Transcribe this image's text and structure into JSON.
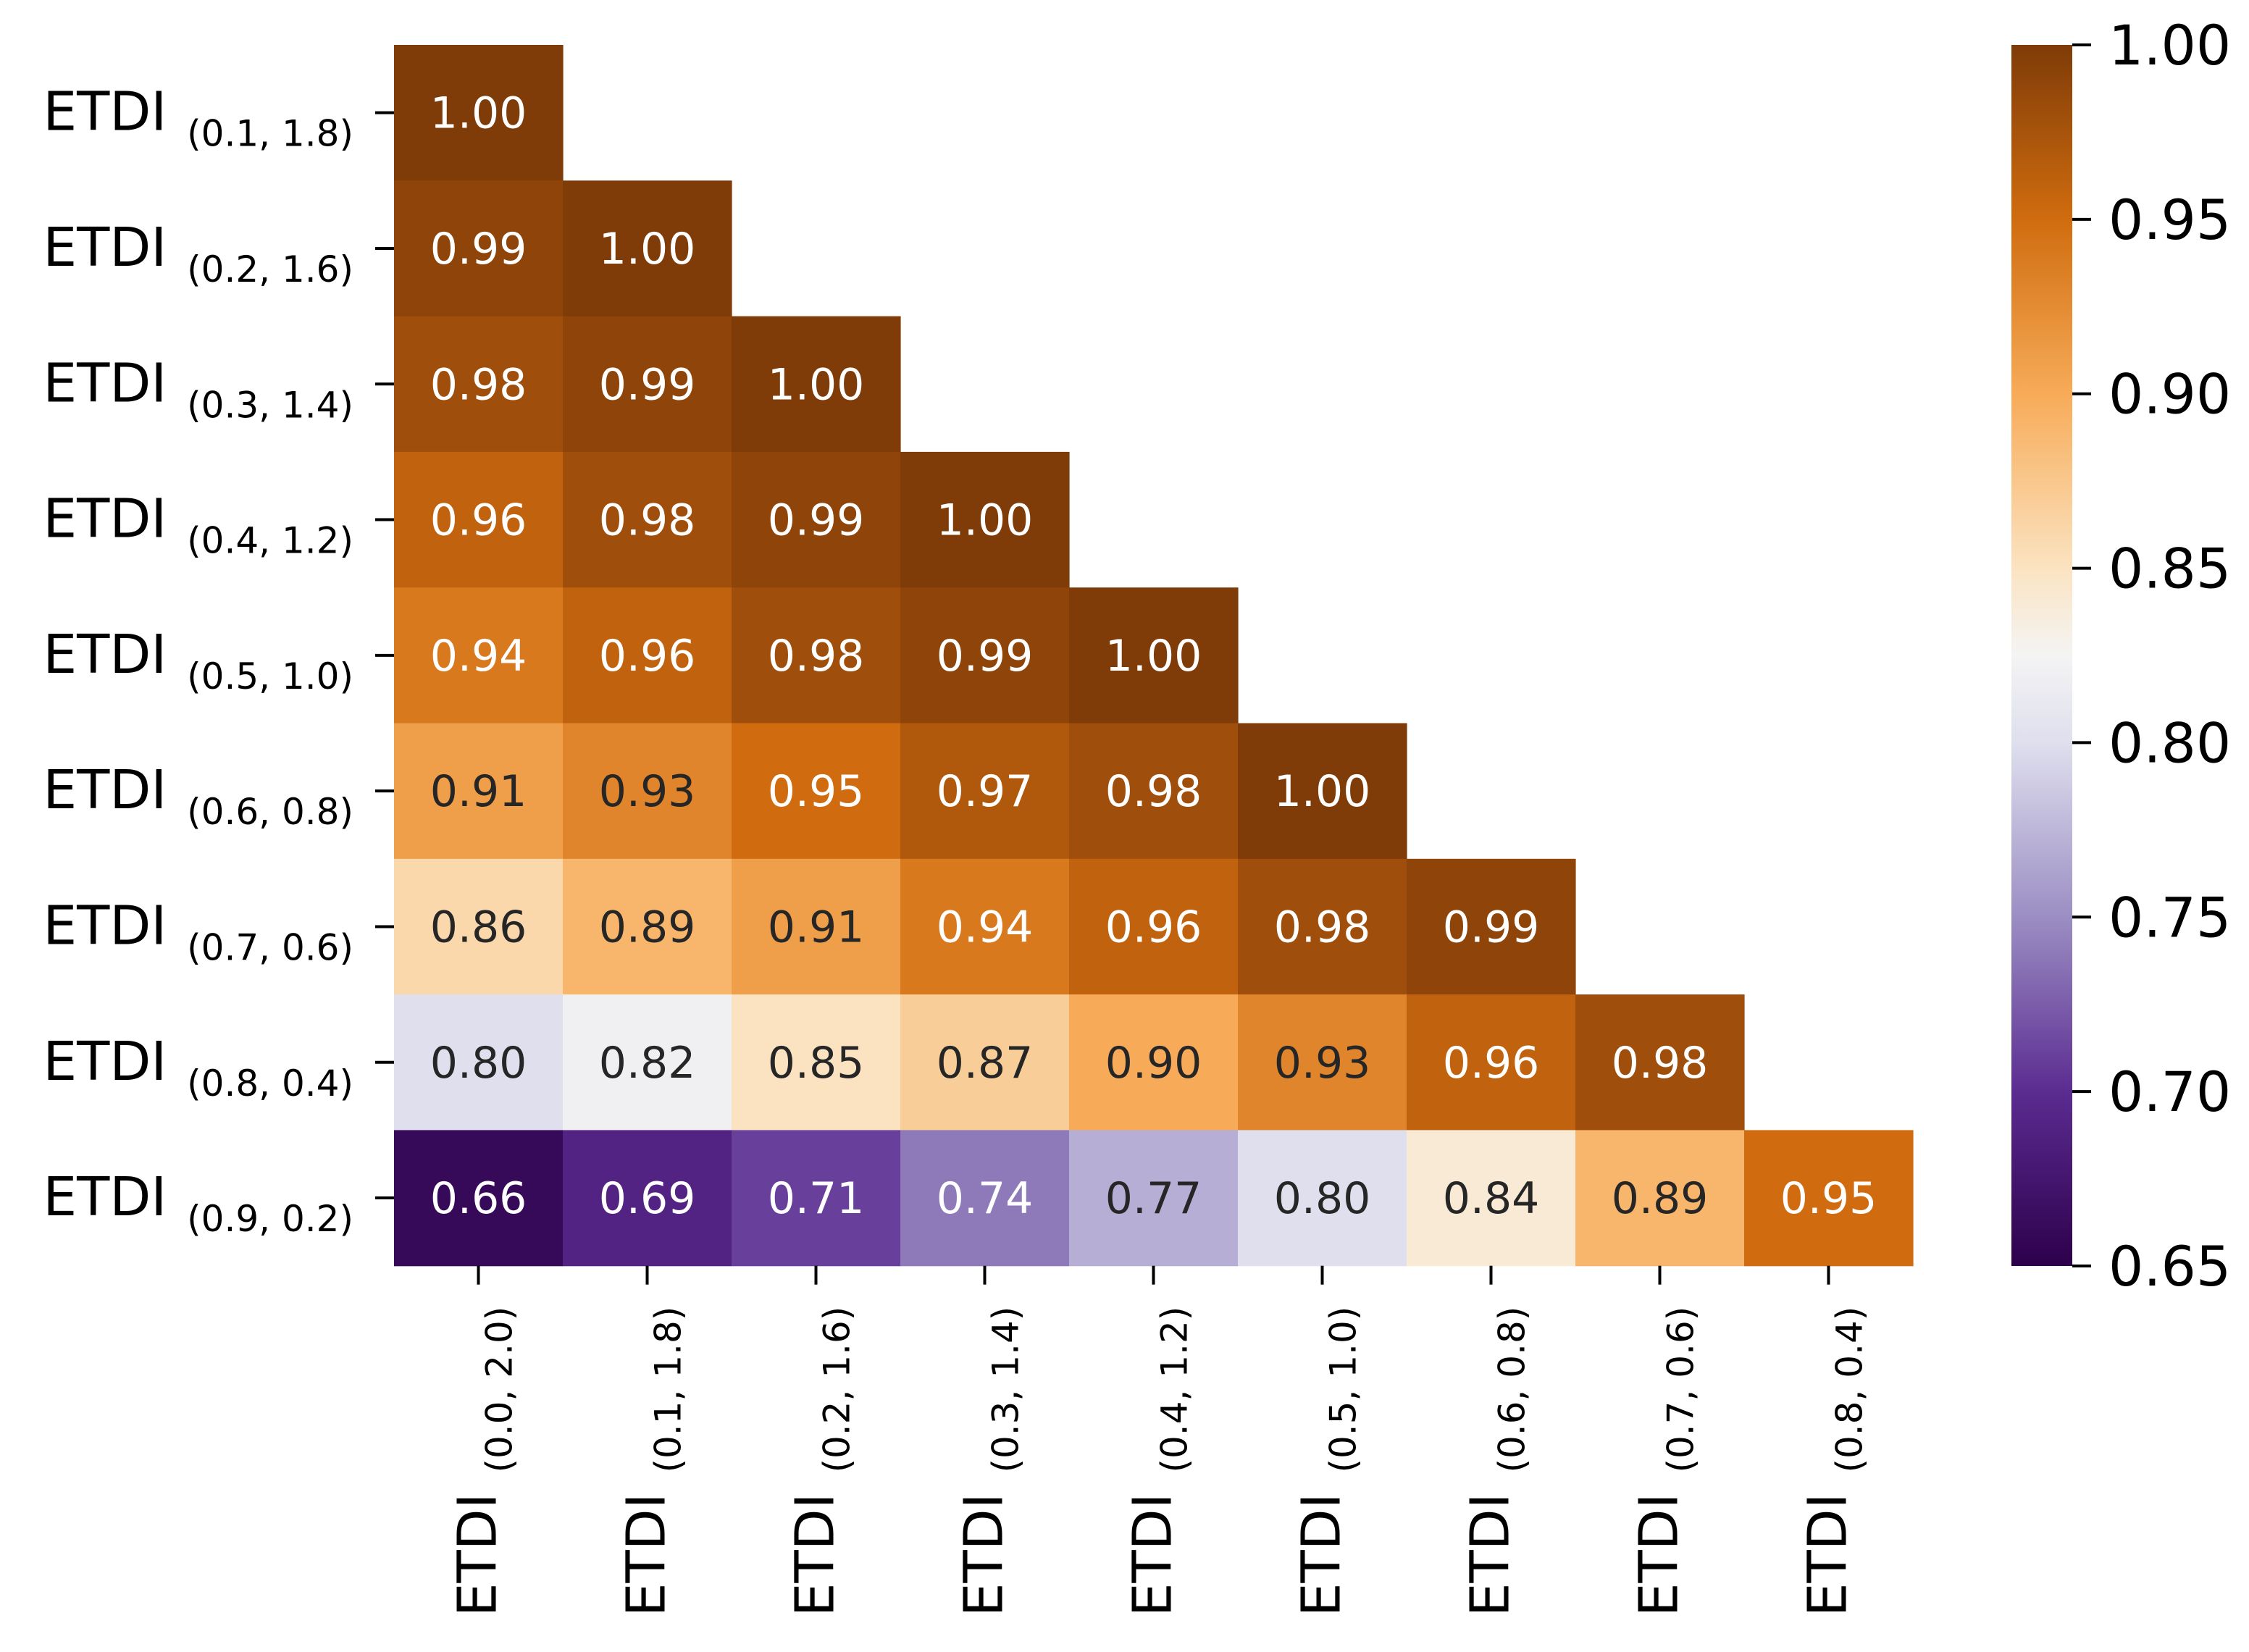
{
  "chart_data": {
    "type": "heatmap",
    "title": "",
    "xlabel": "",
    "ylabel": "",
    "row_labels": [
      {
        "main": "ETDI",
        "sub": "(0.1, 1.8)"
      },
      {
        "main": "ETDI",
        "sub": "(0.2, 1.6)"
      },
      {
        "main": "ETDI",
        "sub": "(0.3, 1.4)"
      },
      {
        "main": "ETDI",
        "sub": "(0.4, 1.2)"
      },
      {
        "main": "ETDI",
        "sub": "(0.5, 1.0)"
      },
      {
        "main": "ETDI",
        "sub": "(0.6, 0.8)"
      },
      {
        "main": "ETDI",
        "sub": "(0.7, 0.6)"
      },
      {
        "main": "ETDI",
        "sub": "(0.8, 0.4)"
      },
      {
        "main": "ETDI",
        "sub": "(0.9, 0.2)"
      }
    ],
    "col_labels": [
      {
        "main": "ETDI",
        "sub": "(0.0, 2.0)"
      },
      {
        "main": "ETDI",
        "sub": "(0.1, 1.8)"
      },
      {
        "main": "ETDI",
        "sub": "(0.2, 1.6)"
      },
      {
        "main": "ETDI",
        "sub": "(0.3, 1.4)"
      },
      {
        "main": "ETDI",
        "sub": "(0.4, 1.2)"
      },
      {
        "main": "ETDI",
        "sub": "(0.5, 1.0)"
      },
      {
        "main": "ETDI",
        "sub": "(0.6, 0.8)"
      },
      {
        "main": "ETDI",
        "sub": "(0.7, 0.6)"
      },
      {
        "main": "ETDI",
        "sub": "(0.8, 0.4)"
      }
    ],
    "values": [
      [
        1.0
      ],
      [
        0.99,
        1.0
      ],
      [
        0.98,
        0.99,
        1.0
      ],
      [
        0.96,
        0.98,
        0.99,
        1.0
      ],
      [
        0.94,
        0.96,
        0.98,
        0.99,
        1.0
      ],
      [
        0.91,
        0.93,
        0.95,
        0.97,
        0.98,
        1.0
      ],
      [
        0.86,
        0.89,
        0.91,
        0.94,
        0.96,
        0.98,
        0.99
      ],
      [
        0.8,
        0.82,
        0.85,
        0.87,
        0.9,
        0.93,
        0.96,
        0.98
      ],
      [
        0.66,
        0.69,
        0.71,
        0.74,
        0.77,
        0.8,
        0.84,
        0.89,
        0.95
      ]
    ],
    "value_labels": [
      [
        "1.00"
      ],
      [
        "0.99",
        "1.00"
      ],
      [
        "0.98",
        "0.99",
        "1.00"
      ],
      [
        "0.96",
        "0.98",
        "0.99",
        "1.00"
      ],
      [
        "0.94",
        "0.96",
        "0.98",
        "0.99",
        "1.00"
      ],
      [
        "0.91",
        "0.93",
        "0.95",
        "0.97",
        "0.98",
        "1.00"
      ],
      [
        "0.86",
        "0.89",
        "0.91",
        "0.94",
        "0.96",
        "0.98",
        "0.99"
      ],
      [
        "0.80",
        "0.82",
        "0.85",
        "0.87",
        "0.90",
        "0.93",
        "0.96",
        "0.98"
      ],
      [
        "0.66",
        "0.69",
        "0.71",
        "0.74",
        "0.77",
        "0.80",
        "0.84",
        "0.89",
        "0.95"
      ]
    ],
    "colorbar": {
      "range": [
        0.65,
        1.0
      ],
      "ticks": [
        0.65,
        0.7,
        0.75,
        0.8,
        0.85,
        0.9,
        0.95,
        1.0
      ],
      "tick_labels": [
        "0.65",
        "0.70",
        "0.75",
        "0.80",
        "0.85",
        "0.90",
        "0.95",
        "1.00"
      ],
      "colormap": "PuOr",
      "stops": [
        {
          "v": 0.65,
          "color": "#2d004b"
        },
        {
          "v": 0.7,
          "color": "#5b2c91"
        },
        {
          "v": 0.75,
          "color": "#9b8ec3"
        },
        {
          "v": 0.8,
          "color": "#dfdfee"
        },
        {
          "v": 0.825,
          "color": "#f4f4f4"
        },
        {
          "v": 0.85,
          "color": "#fbe3c1"
        },
        {
          "v": 0.9,
          "color": "#f7ab58"
        },
        {
          "v": 0.95,
          "color": "#d06c0f"
        },
        {
          "v": 1.0,
          "color": "#7f3b08"
        }
      ]
    },
    "grid": false,
    "legend": "colorbar-right"
  }
}
